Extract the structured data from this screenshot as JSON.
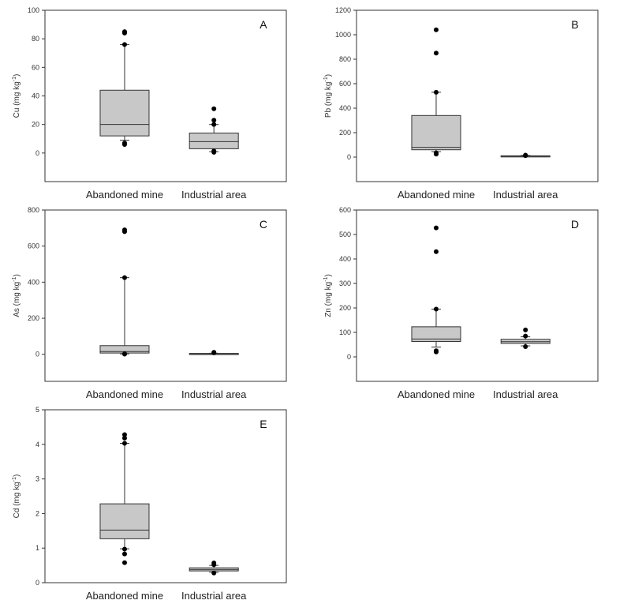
{
  "figure": {
    "colors": {
      "box_fill": "#c8c8c8",
      "stroke": "#333333",
      "point": "#000000"
    }
  },
  "chart_data": [
    {
      "type": "box",
      "panel": "A",
      "ylabel": {
        "base": "Cu (mg kg",
        "sup": "-1",
        "close": ")"
      },
      "categories": [
        "Abandoned mine",
        "Industrial area"
      ],
      "ylim": [
        -20,
        100
      ],
      "yticks": [
        0,
        20,
        40,
        60,
        80,
        100
      ],
      "ytick_labels": [
        "0",
        "20",
        "40",
        "60",
        "80",
        "100"
      ],
      "boxes": [
        {
          "category": "Abandoned mine",
          "q1": 12,
          "median": 20,
          "q3": 44,
          "whisker_low": 9,
          "whisker_high": 76,
          "outliers": [
            6,
            7,
            76,
            84,
            85
          ]
        },
        {
          "category": "Industrial area",
          "q1": 3,
          "median": 8,
          "q3": 14,
          "whisker_low": 1,
          "whisker_high": 20,
          "outliers": [
            0.5,
            1.5,
            20,
            23,
            31
          ]
        }
      ]
    },
    {
      "type": "box",
      "panel": "B",
      "ylabel": {
        "base": "Pb (mg kg",
        "sup": "-1",
        "close": ")"
      },
      "categories": [
        "Abandoned mine",
        "Industrial area"
      ],
      "ylim": [
        -200,
        1200
      ],
      "yticks": [
        0,
        200,
        400,
        600,
        800,
        1000,
        1200
      ],
      "ytick_labels": [
        "0",
        "200",
        "400",
        "600",
        "800",
        "1000",
        "1200"
      ],
      "boxes": [
        {
          "category": "Abandoned mine",
          "q1": 60,
          "median": 80,
          "q3": 340,
          "whisker_low": 45,
          "whisker_high": 530,
          "outliers": [
            25,
            35,
            530,
            850,
            1040
          ]
        },
        {
          "category": "Industrial area",
          "q1": 6,
          "median": 8,
          "q3": 11,
          "whisker_low": 5,
          "whisker_high": 14,
          "outliers": [
            12,
            16
          ]
        }
      ]
    },
    {
      "type": "box",
      "panel": "C",
      "ylabel": {
        "base": "As (mg kg",
        "sup": "-1",
        "close": ")"
      },
      "categories": [
        "Abandoned mine",
        "Industrial area"
      ],
      "ylim": [
        -150,
        800
      ],
      "yticks": [
        0,
        200,
        400,
        600,
        800
      ],
      "ytick_labels": [
        "0",
        "200",
        "400",
        "600",
        "800"
      ],
      "boxes": [
        {
          "category": "Abandoned mine",
          "q1": 7,
          "median": 15,
          "q3": 48,
          "whisker_low": 2,
          "whisker_high": 425,
          "outliers": [
            1,
            3,
            425,
            680,
            690
          ]
        },
        {
          "category": "Industrial area",
          "q1": 3,
          "median": 4,
          "q3": 5,
          "whisker_low": 2,
          "whisker_high": 6,
          "outliers": [
            8,
            11
          ]
        }
      ]
    },
    {
      "type": "box",
      "panel": "D",
      "ylabel": {
        "base": "Zn (mg kg",
        "sup": "-1",
        "close": ")"
      },
      "categories": [
        "Abandoned mine",
        "Industrial area"
      ],
      "ylim": [
        -100,
        600
      ],
      "yticks": [
        0,
        100,
        200,
        300,
        400,
        500,
        600
      ],
      "ytick_labels": [
        "0",
        "100",
        "200",
        "300",
        "400",
        "500",
        "600"
      ],
      "boxes": [
        {
          "category": "Abandoned mine",
          "q1": 63,
          "median": 73,
          "q3": 123,
          "whisker_low": 40,
          "whisker_high": 195,
          "outliers": [
            20,
            25,
            195,
            430,
            527
          ]
        },
        {
          "category": "Industrial area",
          "q1": 55,
          "median": 62,
          "q3": 72,
          "whisker_low": 45,
          "whisker_high": 82,
          "outliers": [
            42,
            85,
            110
          ]
        }
      ]
    },
    {
      "type": "box",
      "panel": "E",
      "ylabel": {
        "base": "Cd (mg kg",
        "sup": "-1",
        "close": ")"
      },
      "categories": [
        "Abandoned mine",
        "Industrial area"
      ],
      "ylim": [
        0,
        5
      ],
      "yticks": [
        0,
        1,
        2,
        3,
        4,
        5
      ],
      "ytick_labels": [
        "0",
        "1",
        "2",
        "3",
        "4",
        "5"
      ],
      "boxes": [
        {
          "category": "Abandoned mine",
          "q1": 1.27,
          "median": 1.52,
          "q3": 2.28,
          "whisker_low": 0.98,
          "whisker_high": 4.03,
          "outliers": [
            0.58,
            0.83,
            0.97,
            4.03,
            4.18,
            4.28
          ]
        },
        {
          "category": "Industrial area",
          "q1": 0.34,
          "median": 0.38,
          "q3": 0.43,
          "whisker_low": 0.3,
          "whisker_high": 0.5,
          "outliers": [
            0.28,
            0.52,
            0.57
          ]
        }
      ]
    }
  ]
}
